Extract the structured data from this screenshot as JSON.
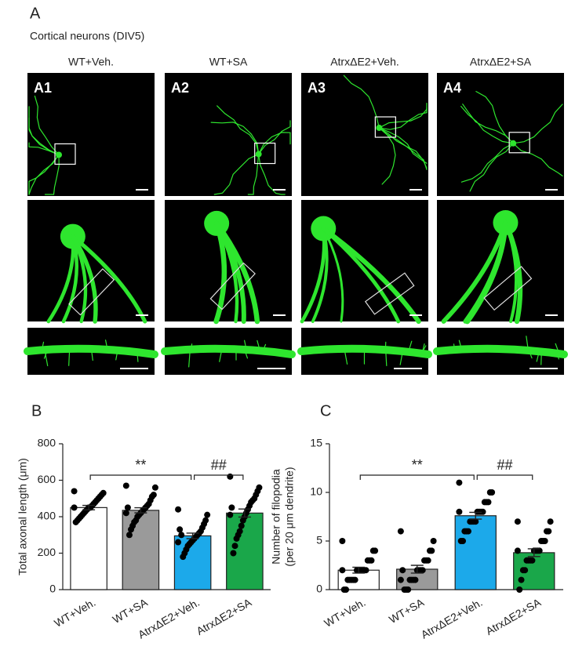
{
  "panel_a": {
    "label": "A",
    "subtitle": "Cortical neurons (DIV5)",
    "columns": [
      {
        "title": "WT+Veh.",
        "panel": "A1"
      },
      {
        "title": "WT+SA",
        "panel": "A2"
      },
      {
        "title": "AtrxΔE2+Veh.",
        "panel": "A3"
      },
      {
        "title": "AtrxΔE2+SA",
        "panel": "A4"
      }
    ]
  },
  "chart_data": [
    {
      "type": "bar",
      "label": "B",
      "ylabel": [
        "Total axonal length (μm)"
      ],
      "categories": [
        "WT+Veh.",
        "WT+SA",
        "AtrxΔE2+Veh.",
        "AtrxΔE2+SA"
      ],
      "values": [
        450,
        435,
        295,
        420
      ],
      "errors": [
        12,
        14,
        15,
        22
      ],
      "colors": [
        "#ffffff",
        "#9a9a9a",
        "#1ca9ea",
        "#1aa74a"
      ],
      "points": [
        [
          540,
          530,
          520,
          510,
          500,
          490,
          480,
          470,
          460,
          450,
          450,
          440,
          430,
          420,
          410,
          400,
          390,
          380,
          370,
          450
        ],
        [
          570,
          560,
          520,
          510,
          490,
          470,
          460,
          450,
          440,
          430,
          420,
          410,
          400,
          380,
          370,
          350,
          330,
          300,
          450,
          420
        ],
        [
          440,
          410,
          380,
          360,
          340,
          320,
          310,
          300,
          290,
          280,
          270,
          260,
          250,
          240,
          220,
          200,
          180,
          300,
          330,
          260
        ],
        [
          620,
          560,
          540,
          520,
          500,
          490,
          480,
          460,
          440,
          420,
          400,
          380,
          350,
          320,
          300,
          280,
          240,
          200,
          450,
          410
        ]
      ],
      "ylim": [
        0,
        800
      ],
      "yticks": [
        0,
        200,
        400,
        600,
        800
      ],
      "annotations": [
        {
          "text": "**",
          "from": 0,
          "to": 2
        },
        {
          "text": "##",
          "from": 2,
          "to": 3
        }
      ]
    },
    {
      "type": "bar",
      "label": "C",
      "ylabel": [
        "Number of filopodia",
        "(per 20 μm dendrite)"
      ],
      "categories": [
        "WT+Veh.",
        "WT+SA",
        "AtrxΔE2+Veh.",
        "AtrxΔE2+SA"
      ],
      "values": [
        2,
        2.1,
        7.6,
        3.8
      ],
      "errors": [
        0.3,
        0.4,
        0.35,
        0.4
      ],
      "colors": [
        "#ffffff",
        "#9a9a9a",
        "#1ca9ea",
        "#1aa74a"
      ],
      "points": [
        [
          5,
          4,
          4,
          3,
          3,
          3,
          2,
          2,
          2,
          2,
          2,
          2,
          1,
          1,
          1,
          1,
          1,
          0,
          0,
          2
        ],
        [
          6,
          5,
          4,
          4,
          3,
          3,
          3,
          2,
          2,
          2,
          2,
          1,
          1,
          1,
          1,
          0,
          0,
          0,
          2,
          1
        ],
        [
          11,
          10,
          10,
          9,
          9,
          9,
          8,
          8,
          8,
          8,
          7,
          7,
          7,
          7,
          6,
          6,
          6,
          5,
          5,
          8
        ],
        [
          7,
          7,
          6,
          6,
          5,
          5,
          5,
          4,
          4,
          4,
          4,
          3,
          3,
          3,
          3,
          2,
          2,
          1,
          0,
          4
        ]
      ],
      "ylim": [
        0,
        15
      ],
      "yticks": [
        0,
        5,
        10,
        15
      ],
      "annotations": [
        {
          "text": "**",
          "from": 0,
          "to": 2
        },
        {
          "text": "##",
          "from": 2,
          "to": 3
        }
      ]
    }
  ]
}
